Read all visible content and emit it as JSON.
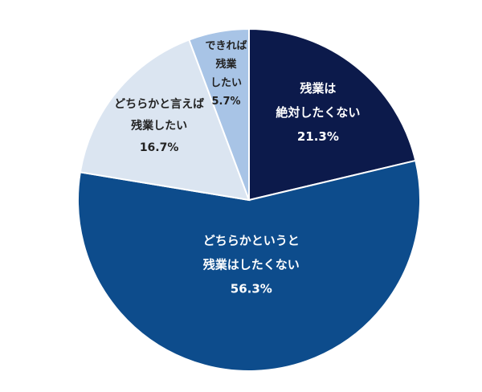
{
  "chart_data": {
    "type": "pie",
    "categories": [
      [
        "残業は",
        "絶対したくない"
      ],
      [
        "どちらかというと",
        "残業はしたくない"
      ],
      [
        "どちらかと言えば",
        "残業したい"
      ],
      [
        "できれば",
        "残業",
        "したい"
      ]
    ],
    "values": [
      21.3,
      56.3,
      16.7,
      5.7
    ],
    "value_labels": [
      "21.3%",
      "56.3%",
      "16.7%",
      "5.7%"
    ],
    "colors": [
      "#0c1a4b",
      "#0d4c8c",
      "#dbe5f1",
      "#a8c4e6"
    ]
  }
}
